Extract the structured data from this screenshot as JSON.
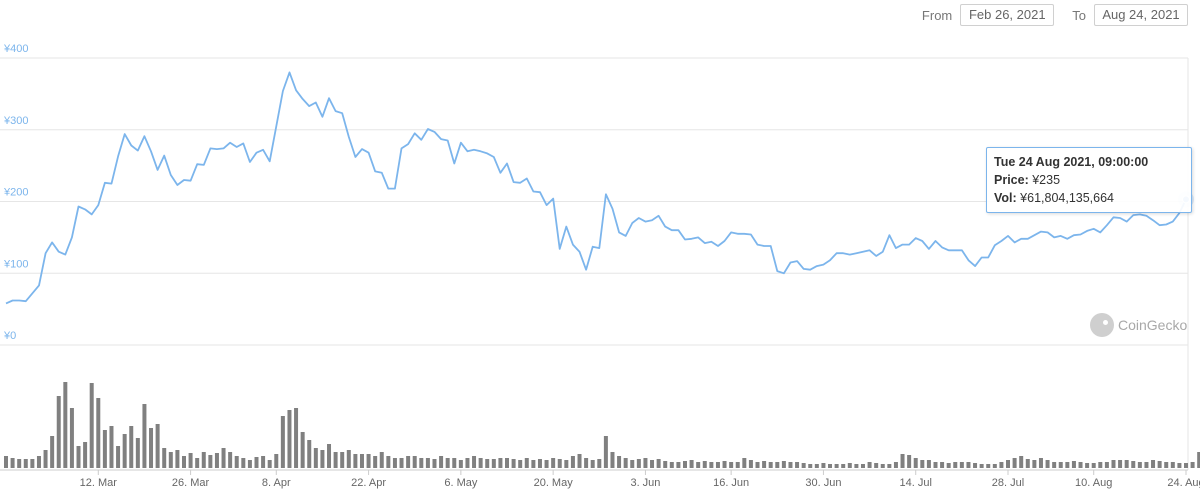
{
  "range_selector": {
    "from_label": "From",
    "from_value": "Feb 26, 2021",
    "to_label": "To",
    "to_value": "Aug 24, 2021"
  },
  "tooltip": {
    "date": "Tue 24 Aug 2021, 09:00:00",
    "price_label": "Price:",
    "price_value": "¥235",
    "vol_label": "Vol:",
    "vol_value": "¥61,804,135,664"
  },
  "watermark": "CoinGecko",
  "colors": {
    "line": "#7cb5ec",
    "volume": "#808080",
    "grid": "#e6e6e6",
    "axis_label": "#7cb5ec"
  },
  "chart_data": [
    {
      "type": "line",
      "title": "",
      "xlabel": "",
      "ylabel": "",
      "currency": "¥",
      "ylim": [
        0,
        400
      ],
      "y_ticks": [
        {
          "value": 0,
          "label": "¥0"
        },
        {
          "value": 100,
          "label": "¥100"
        },
        {
          "value": 200,
          "label": "¥200"
        },
        {
          "value": 300,
          "label": "¥300"
        },
        {
          "value": 400,
          "label": "¥400"
        }
      ],
      "x_start": "2021-02-26",
      "x_end": "2021-08-24",
      "x_ticks": [
        "12. Mar",
        "26. Mar",
        "8. Apr",
        "22. Apr",
        "6. May",
        "20. May",
        "3. Jun",
        "16. Jun",
        "30. Jun",
        "14. Jul",
        "28. Jul",
        "10. Aug",
        "24. Aug"
      ],
      "grid": true,
      "series": [
        {
          "x": [
            "2021-02-26",
            "2021-02-27",
            "2021-02-28",
            "2021-03-01",
            "2021-03-02",
            "2021-03-03",
            "2021-03-04",
            "2021-03-05",
            "2021-03-06",
            "2021-03-07",
            "2021-03-08",
            "2021-03-09",
            "2021-03-10",
            "2021-03-11",
            "2021-03-12",
            "2021-03-13",
            "2021-03-14",
            "2021-03-15",
            "2021-03-16",
            "2021-03-17",
            "2021-03-18",
            "2021-03-19",
            "2021-03-20",
            "2021-03-21",
            "2021-03-22",
            "2021-03-23",
            "2021-03-24",
            "2021-03-25",
            "2021-03-26",
            "2021-03-27",
            "2021-03-28",
            "2021-03-29",
            "2021-03-30",
            "2021-03-31",
            "2021-04-01",
            "2021-04-02",
            "2021-04-03",
            "2021-04-04",
            "2021-04-05",
            "2021-04-06",
            "2021-04-07",
            "2021-04-08",
            "2021-04-09",
            "2021-04-10",
            "2021-04-11",
            "2021-04-12",
            "2021-04-13",
            "2021-04-14",
            "2021-04-15",
            "2021-04-16",
            "2021-04-17",
            "2021-04-18",
            "2021-04-19",
            "2021-04-20",
            "2021-04-21",
            "2021-04-22",
            "2021-04-23",
            "2021-04-24",
            "2021-04-25",
            "2021-04-26",
            "2021-04-27",
            "2021-04-28",
            "2021-04-29",
            "2021-04-30",
            "2021-05-01",
            "2021-05-02",
            "2021-05-03",
            "2021-05-04",
            "2021-05-05",
            "2021-05-06",
            "2021-05-07",
            "2021-05-08",
            "2021-05-09",
            "2021-05-10",
            "2021-05-11",
            "2021-05-12",
            "2021-05-13",
            "2021-05-14",
            "2021-05-15",
            "2021-05-16",
            "2021-05-17",
            "2021-05-18",
            "2021-05-19",
            "2021-05-20",
            "2021-05-21",
            "2021-05-22",
            "2021-05-23",
            "2021-05-24",
            "2021-05-25",
            "2021-05-26",
            "2021-05-27",
            "2021-05-28",
            "2021-05-29",
            "2021-05-30",
            "2021-05-31",
            "2021-06-01",
            "2021-06-02",
            "2021-06-03",
            "2021-06-04",
            "2021-06-05",
            "2021-06-06",
            "2021-06-07",
            "2021-06-08",
            "2021-06-09",
            "2021-06-10",
            "2021-06-11",
            "2021-06-12",
            "2021-06-13",
            "2021-06-14",
            "2021-06-15",
            "2021-06-16",
            "2021-06-17",
            "2021-06-18",
            "2021-06-19",
            "2021-06-20",
            "2021-06-21",
            "2021-06-22",
            "2021-06-23",
            "2021-06-24",
            "2021-06-25",
            "2021-06-26",
            "2021-06-27",
            "2021-06-28",
            "2021-06-29",
            "2021-06-30",
            "2021-07-01",
            "2021-07-02",
            "2021-07-03",
            "2021-07-04",
            "2021-07-05",
            "2021-07-06",
            "2021-07-07",
            "2021-07-08",
            "2021-07-09",
            "2021-07-10",
            "2021-07-11",
            "2021-07-12",
            "2021-07-13",
            "2021-07-14",
            "2021-07-15",
            "2021-07-16",
            "2021-07-17",
            "2021-07-18",
            "2021-07-19",
            "2021-07-20",
            "2021-07-21",
            "2021-07-22",
            "2021-07-23",
            "2021-07-24",
            "2021-07-25",
            "2021-07-26",
            "2021-07-27",
            "2021-07-28",
            "2021-07-29",
            "2021-07-30",
            "2021-07-31",
            "2021-08-01",
            "2021-08-02",
            "2021-08-03",
            "2021-08-04",
            "2021-08-05",
            "2021-08-06",
            "2021-08-07",
            "2021-08-08",
            "2021-08-09",
            "2021-08-10",
            "2021-08-11",
            "2021-08-12",
            "2021-08-13",
            "2021-08-14",
            "2021-08-15",
            "2021-08-16",
            "2021-08-17",
            "2021-08-18",
            "2021-08-19",
            "2021-08-20",
            "2021-08-21",
            "2021-08-22",
            "2021-08-23",
            "2021-08-24"
          ],
          "price": [
            58,
            62,
            62,
            61,
            72,
            83,
            128,
            143,
            130,
            126,
            150,
            193,
            189,
            182,
            195,
            226,
            225,
            263,
            294,
            278,
            271,
            291,
            270,
            244,
            264,
            237,
            223,
            230,
            229,
            252,
            251,
            274,
            273,
            274,
            282,
            276,
            281,
            255,
            268,
            272,
            256,
            305,
            354,
            380,
            355,
            343,
            333,
            338,
            318,
            344,
            326,
            323,
            290,
            262,
            273,
            268,
            242,
            240,
            218,
            218,
            274,
            280,
            295,
            286,
            301,
            297,
            287,
            285,
            253,
            282,
            270,
            272,
            270,
            267,
            262,
            240,
            253,
            227,
            226,
            232,
            214,
            213,
            195,
            204,
            134,
            165,
            140,
            130,
            105,
            137,
            135,
            210,
            190,
            157,
            152,
            170,
            177,
            172,
            174,
            180,
            165,
            160,
            160,
            147,
            148,
            150,
            142,
            144,
            138,
            145,
            157,
            155,
            155,
            154,
            140,
            138,
            138,
            103,
            100,
            115,
            117,
            106,
            105,
            110,
            112,
            118,
            128,
            128,
            126,
            128,
            130,
            132,
            124,
            130,
            153,
            135,
            140,
            140,
            149,
            145,
            134,
            145,
            136,
            132,
            132,
            132,
            118,
            110,
            122,
            122,
            139,
            145,
            152,
            143,
            148,
            148,
            153,
            158,
            157,
            150,
            152,
            148,
            153,
            154,
            159,
            162,
            157,
            167,
            178,
            177,
            172,
            181,
            182,
            180,
            174,
            167,
            168,
            172,
            184,
            203,
            204,
            235
          ]
        }
      ],
      "volume": {
        "unit": "¥",
        "approx_daily": [
          12,
          10,
          9,
          9,
          9,
          12,
          18,
          32,
          72,
          86,
          60,
          22,
          26,
          85,
          70,
          38,
          42,
          22,
          34,
          42,
          30,
          64,
          40,
          44,
          20,
          16,
          18,
          12,
          15,
          10,
          16,
          13,
          15,
          20,
          16,
          12,
          10,
          8,
          11,
          12,
          8,
          14,
          52,
          58,
          60,
          36,
          28,
          20,
          18,
          24,
          16,
          16,
          18,
          14,
          14,
          14,
          12,
          16,
          12,
          10,
          10,
          12,
          12,
          10,
          10,
          9,
          12,
          10,
          10,
          8,
          10,
          12,
          10,
          9,
          9,
          10,
          10,
          9,
          8,
          10,
          8,
          9,
          8,
          10,
          9,
          8,
          12,
          14,
          10,
          8,
          9,
          32,
          16,
          12,
          10,
          8,
          9,
          10,
          8,
          9,
          7,
          6,
          6,
          7,
          8,
          6,
          7,
          6,
          6,
          7,
          6,
          6,
          10,
          8,
          6,
          7,
          6,
          6,
          7,
          6,
          6,
          5,
          4,
          4,
          5,
          4,
          4,
          4,
          5,
          4,
          4,
          6,
          5,
          4,
          4,
          6,
          14,
          13,
          10,
          8,
          8,
          6,
          6,
          5,
          6,
          6,
          6,
          5,
          4,
          4,
          4,
          6,
          8,
          10,
          12,
          9,
          8,
          10,
          8,
          6,
          6,
          6,
          7,
          6,
          5,
          5,
          6,
          6,
          8,
          8,
          8,
          7,
          6,
          6,
          8,
          7,
          6,
          6,
          5,
          5,
          6,
          16,
          28,
          22
        ]
      }
    }
  ]
}
